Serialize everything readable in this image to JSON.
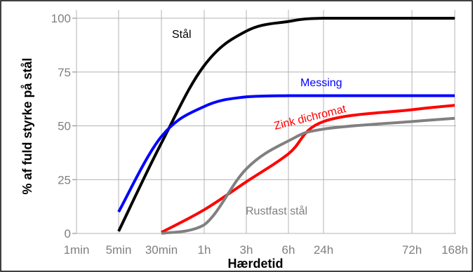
{
  "chart_data": {
    "type": "line",
    "title": "",
    "xlabel": "Hærdetid",
    "ylabel": "% af fuld styrke på stål",
    "x_categories": [
      "1min",
      "5min",
      "30min",
      "1h",
      "3h",
      "6h",
      "24h",
      "72h",
      "168h"
    ],
    "ylim": [
      0,
      100
    ],
    "y_ticks": [
      0,
      25,
      50,
      75,
      100
    ],
    "grid": true,
    "legend": "inline labels",
    "series": [
      {
        "name": "Stål",
        "color": "#000000",
        "points": [
          {
            "x": "5min",
            "y": 1
          },
          {
            "x": "30min",
            "y": 42
          },
          {
            "x": "1h",
            "y": 78
          },
          {
            "x": "3h",
            "y": 94
          },
          {
            "x": "6h",
            "y": 98.5
          },
          {
            "x": "24h",
            "y": 100
          },
          {
            "x": "72h",
            "y": 100
          },
          {
            "x": "168h",
            "y": 100
          }
        ]
      },
      {
        "name": "Messing",
        "color": "#0000ff",
        "points": [
          {
            "x": "5min",
            "y": 10
          },
          {
            "x": "30min",
            "y": 45
          },
          {
            "x": "1h",
            "y": 59
          },
          {
            "x": "3h",
            "y": 63.5
          },
          {
            "x": "6h",
            "y": 64
          },
          {
            "x": "24h",
            "y": 64
          },
          {
            "x": "72h",
            "y": 64
          },
          {
            "x": "168h",
            "y": 64
          }
        ]
      },
      {
        "name": "Zink dichromat",
        "color": "#ff0000",
        "points": [
          {
            "x": "30min",
            "y": 0.5
          },
          {
            "x": "1h",
            "y": 11
          },
          {
            "x": "3h",
            "y": 24
          },
          {
            "x": "6h",
            "y": 37
          },
          {
            "x": "24h",
            "y": 52
          },
          {
            "x": "72h",
            "y": 57.5
          },
          {
            "x": "168h",
            "y": 59.5
          }
        ]
      },
      {
        "name": "Rustfast stål",
        "color": "#808080",
        "points": [
          {
            "x": "30min",
            "y": 0
          },
          {
            "x": "1h",
            "y": 4
          },
          {
            "x": "3h",
            "y": 30
          },
          {
            "x": "6h",
            "y": 43
          },
          {
            "x": "24h",
            "y": 48.5
          },
          {
            "x": "72h",
            "y": 52
          },
          {
            "x": "168h",
            "y": 53.5
          }
        ]
      }
    ]
  }
}
